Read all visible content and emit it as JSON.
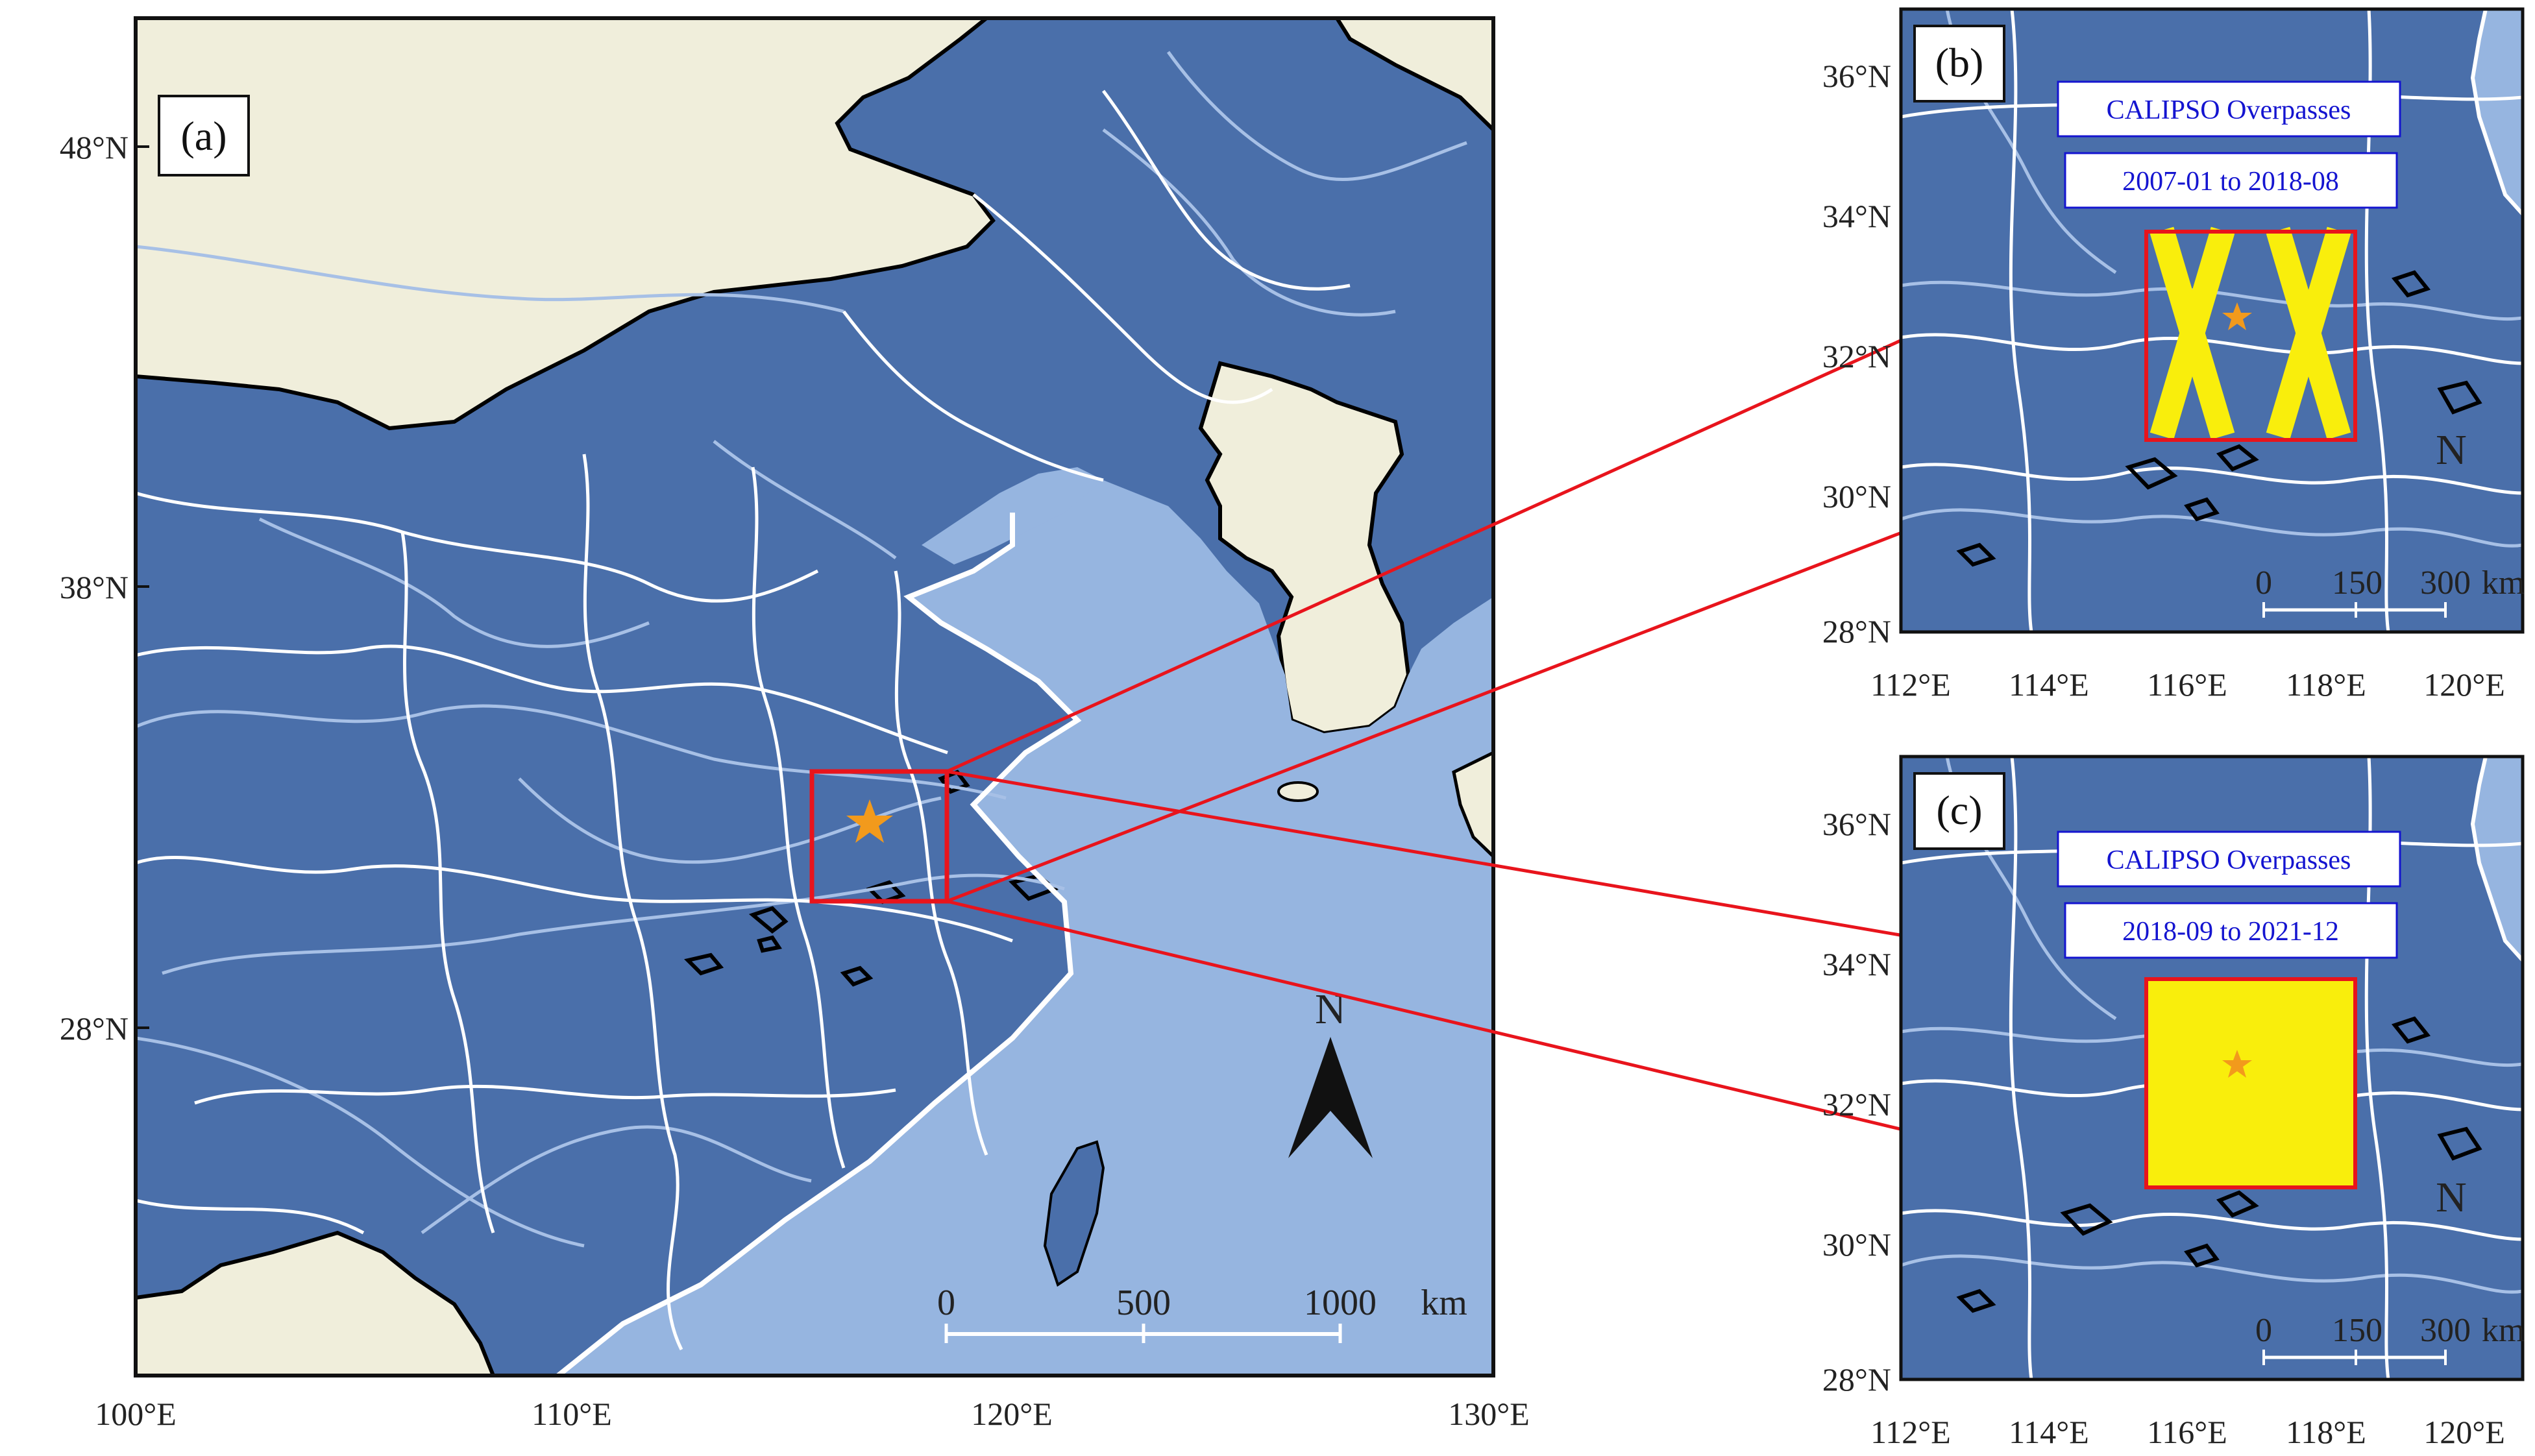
{
  "colors": {
    "land_region": "#4a6faa",
    "sea": "#96b5e0",
    "outside_land": "#f0eedb",
    "river": "#a7c0e6",
    "province_border": "#ffffff",
    "study_box": "#e8141c",
    "overpass": "#f9ee0c",
    "site_star": "#f29a1c"
  },
  "panel_a": {
    "label": "(a)",
    "lat_ticks": [
      "48°N",
      "38°N",
      "28°N"
    ],
    "lon_ticks": [
      "100°E",
      "110°E",
      "120°E",
      "130°E"
    ],
    "scale": {
      "zero": "0",
      "mid": "500",
      "max": "1000",
      "unit": "km"
    },
    "north": "N",
    "icons": [
      "north-arrow-icon",
      "site-star-icon"
    ]
  },
  "panel_b": {
    "label": "(b)",
    "legend_title": "CALIPSO Overpasses",
    "legend_period": "2007-01 to 2018-08",
    "lat_ticks": [
      "36°N",
      "34°N",
      "32°N",
      "30°N",
      "28°N"
    ],
    "lon_ticks": [
      "112°E",
      "114°E",
      "116°E",
      "118°E",
      "120°E"
    ],
    "scale": {
      "zero": "0",
      "mid": "150",
      "max": "300",
      "unit": "km"
    },
    "north": "N"
  },
  "panel_c": {
    "label": "(c)",
    "legend_title": "CALIPSO Overpasses",
    "legend_period": "2018-09 to 2021-12",
    "lat_ticks": [
      "36°N",
      "34°N",
      "32°N",
      "30°N",
      "28°N"
    ],
    "lon_ticks": [
      "112°E",
      "114°E",
      "116°E",
      "118°E",
      "120°E"
    ],
    "scale": {
      "zero": "0",
      "mid": "150",
      "max": "300",
      "unit": "km"
    },
    "north": "N"
  }
}
